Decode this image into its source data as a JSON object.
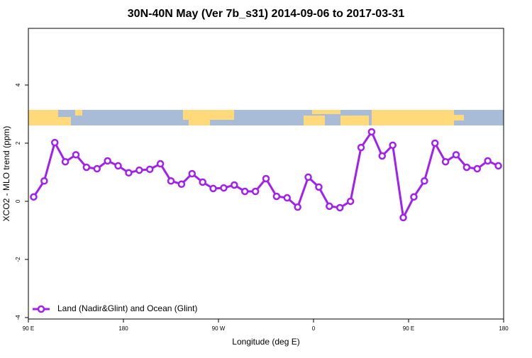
{
  "chart_data": {
    "type": "line",
    "title": "30N-40N May (Ver 7b_s31)   2014-09-06 to 2017-03-31",
    "x_label": "Longitude (deg E)",
    "y_label": "XCO2 - MLO trend (ppm)",
    "x": [
      95,
      105,
      115,
      125,
      135,
      145,
      155,
      165,
      175,
      185,
      195,
      205,
      215,
      225,
      235,
      245,
      255,
      265,
      275,
      285,
      295,
      305,
      315,
      325,
      335,
      345,
      355,
      365,
      375,
      385,
      395,
      405,
      415,
      425,
      435,
      445,
      455,
      465,
      475,
      485,
      495,
      505,
      515,
      525,
      535
    ],
    "series": [
      {
        "name": "Land (Nadir&Glint) and Ocean (Glint)",
        "color": "#a020f0",
        "values": [
          0.15,
          0.7,
          2.02,
          1.36,
          1.6,
          1.17,
          1.12,
          1.39,
          1.22,
          0.98,
          1.07,
          1.1,
          1.29,
          0.7,
          0.59,
          0.95,
          0.66,
          0.44,
          0.46,
          0.56,
          0.34,
          0.34,
          0.78,
          0.17,
          0.12,
          -0.2,
          0.83,
          0.49,
          -0.17,
          -0.22,
          0.0,
          1.85,
          2.39,
          1.56,
          1.93,
          -0.56,
          0.15,
          0.7,
          2.0,
          1.36,
          1.6,
          1.17,
          1.12,
          1.39,
          1.22
        ]
      }
    ],
    "xlim": [
      90,
      540
    ],
    "xticks": [
      {
        "value": 90,
        "label": "90 E"
      },
      180,
      {
        "value": 270,
        "label": "90 W"
      },
      {
        "value": 360,
        "label": "0"
      },
      {
        "value": 450,
        "label": "90 E"
      },
      {
        "value": 540,
        "label": "180"
      }
    ],
    "ylim": [
      -4.05,
      5.95
    ],
    "yticks": [
      -4,
      -2,
      0,
      2,
      4
    ],
    "legend": "lower left"
  }
}
